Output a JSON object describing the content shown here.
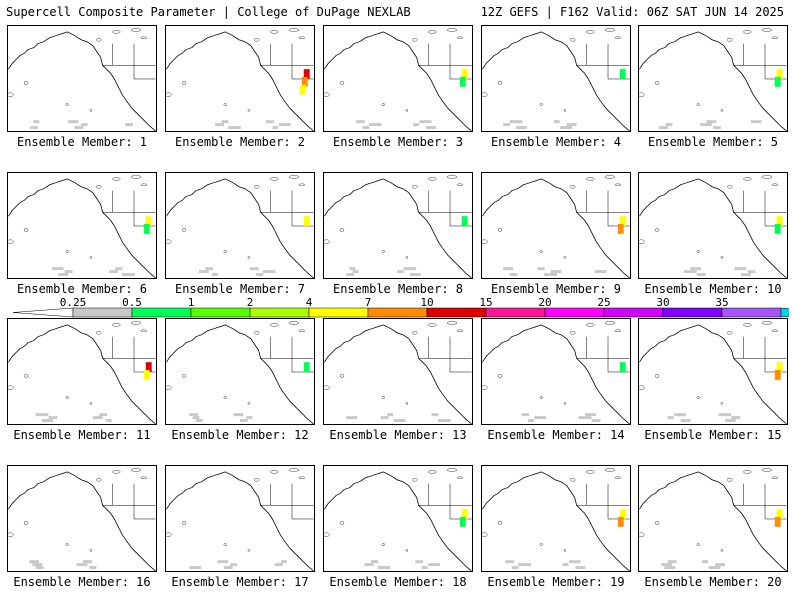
{
  "header": {
    "left": "Supercell Composite Parameter | College of DuPage NEXLAB",
    "right": "12Z GEFS | F162 Valid: 06Z SAT JUN 14 2025"
  },
  "colorbar": {
    "labels": [
      "0.25",
      "0.5",
      "1",
      "2",
      "4",
      "7",
      "10",
      "15",
      "20",
      "25",
      "30",
      "35"
    ],
    "colors": [
      "#c8c8c8",
      "#00ff55",
      "#55ff00",
      "#aaff00",
      "#ffff00",
      "#ff8c00",
      "#e00000",
      "#ff1493",
      "#ff00ff",
      "#d400ff",
      "#8000ff",
      "#a855f7",
      "#00d5e8"
    ]
  },
  "members": [
    {
      "id": 1,
      "label": "Ensemble Member: 1",
      "hot": []
    },
    {
      "id": 2,
      "label": "Ensemble Member: 2",
      "hot": [
        "red",
        "orange",
        "yellow"
      ]
    },
    {
      "id": 3,
      "label": "Ensemble Member: 3",
      "hot": [
        "yellow",
        "green"
      ]
    },
    {
      "id": 4,
      "label": "Ensemble Member: 4",
      "hot": [
        "green"
      ]
    },
    {
      "id": 5,
      "label": "Ensemble Member: 5",
      "hot": [
        "yellow",
        "green"
      ]
    },
    {
      "id": 6,
      "label": "Ensemble Member: 6",
      "hot": [
        "yellow",
        "green"
      ]
    },
    {
      "id": 7,
      "label": "Ensemble Member: 7",
      "hot": [
        "yellow"
      ]
    },
    {
      "id": 8,
      "label": "Ensemble Member: 8",
      "hot": [
        "green"
      ]
    },
    {
      "id": 9,
      "label": "Ensemble Member: 9",
      "hot": [
        "yellow",
        "orange"
      ]
    },
    {
      "id": 10,
      "label": "Ensemble Member: 10",
      "hot": [
        "yellow",
        "green"
      ]
    },
    {
      "id": 11,
      "label": "Ensemble Member: 11",
      "hot": [
        "red",
        "yellow"
      ]
    },
    {
      "id": 12,
      "label": "Ensemble Member: 12",
      "hot": [
        "green"
      ]
    },
    {
      "id": 13,
      "label": "Ensemble Member: 13",
      "hot": []
    },
    {
      "id": 14,
      "label": "Ensemble Member: 14",
      "hot": [
        "green"
      ]
    },
    {
      "id": 15,
      "label": "Ensemble Member: 15",
      "hot": [
        "yellow",
        "orange"
      ]
    },
    {
      "id": 16,
      "label": "Ensemble Member: 16",
      "hot": []
    },
    {
      "id": 17,
      "label": "Ensemble Member: 17",
      "hot": []
    },
    {
      "id": 18,
      "label": "Ensemble Member: 18",
      "hot": [
        "yellow",
        "green"
      ]
    },
    {
      "id": 19,
      "label": "Ensemble Member: 19",
      "hot": [
        "yellow",
        "orange"
      ]
    },
    {
      "id": 20,
      "label": "Ensemble Member: 20",
      "hot": [
        "yellow",
        "orange"
      ]
    }
  ]
}
